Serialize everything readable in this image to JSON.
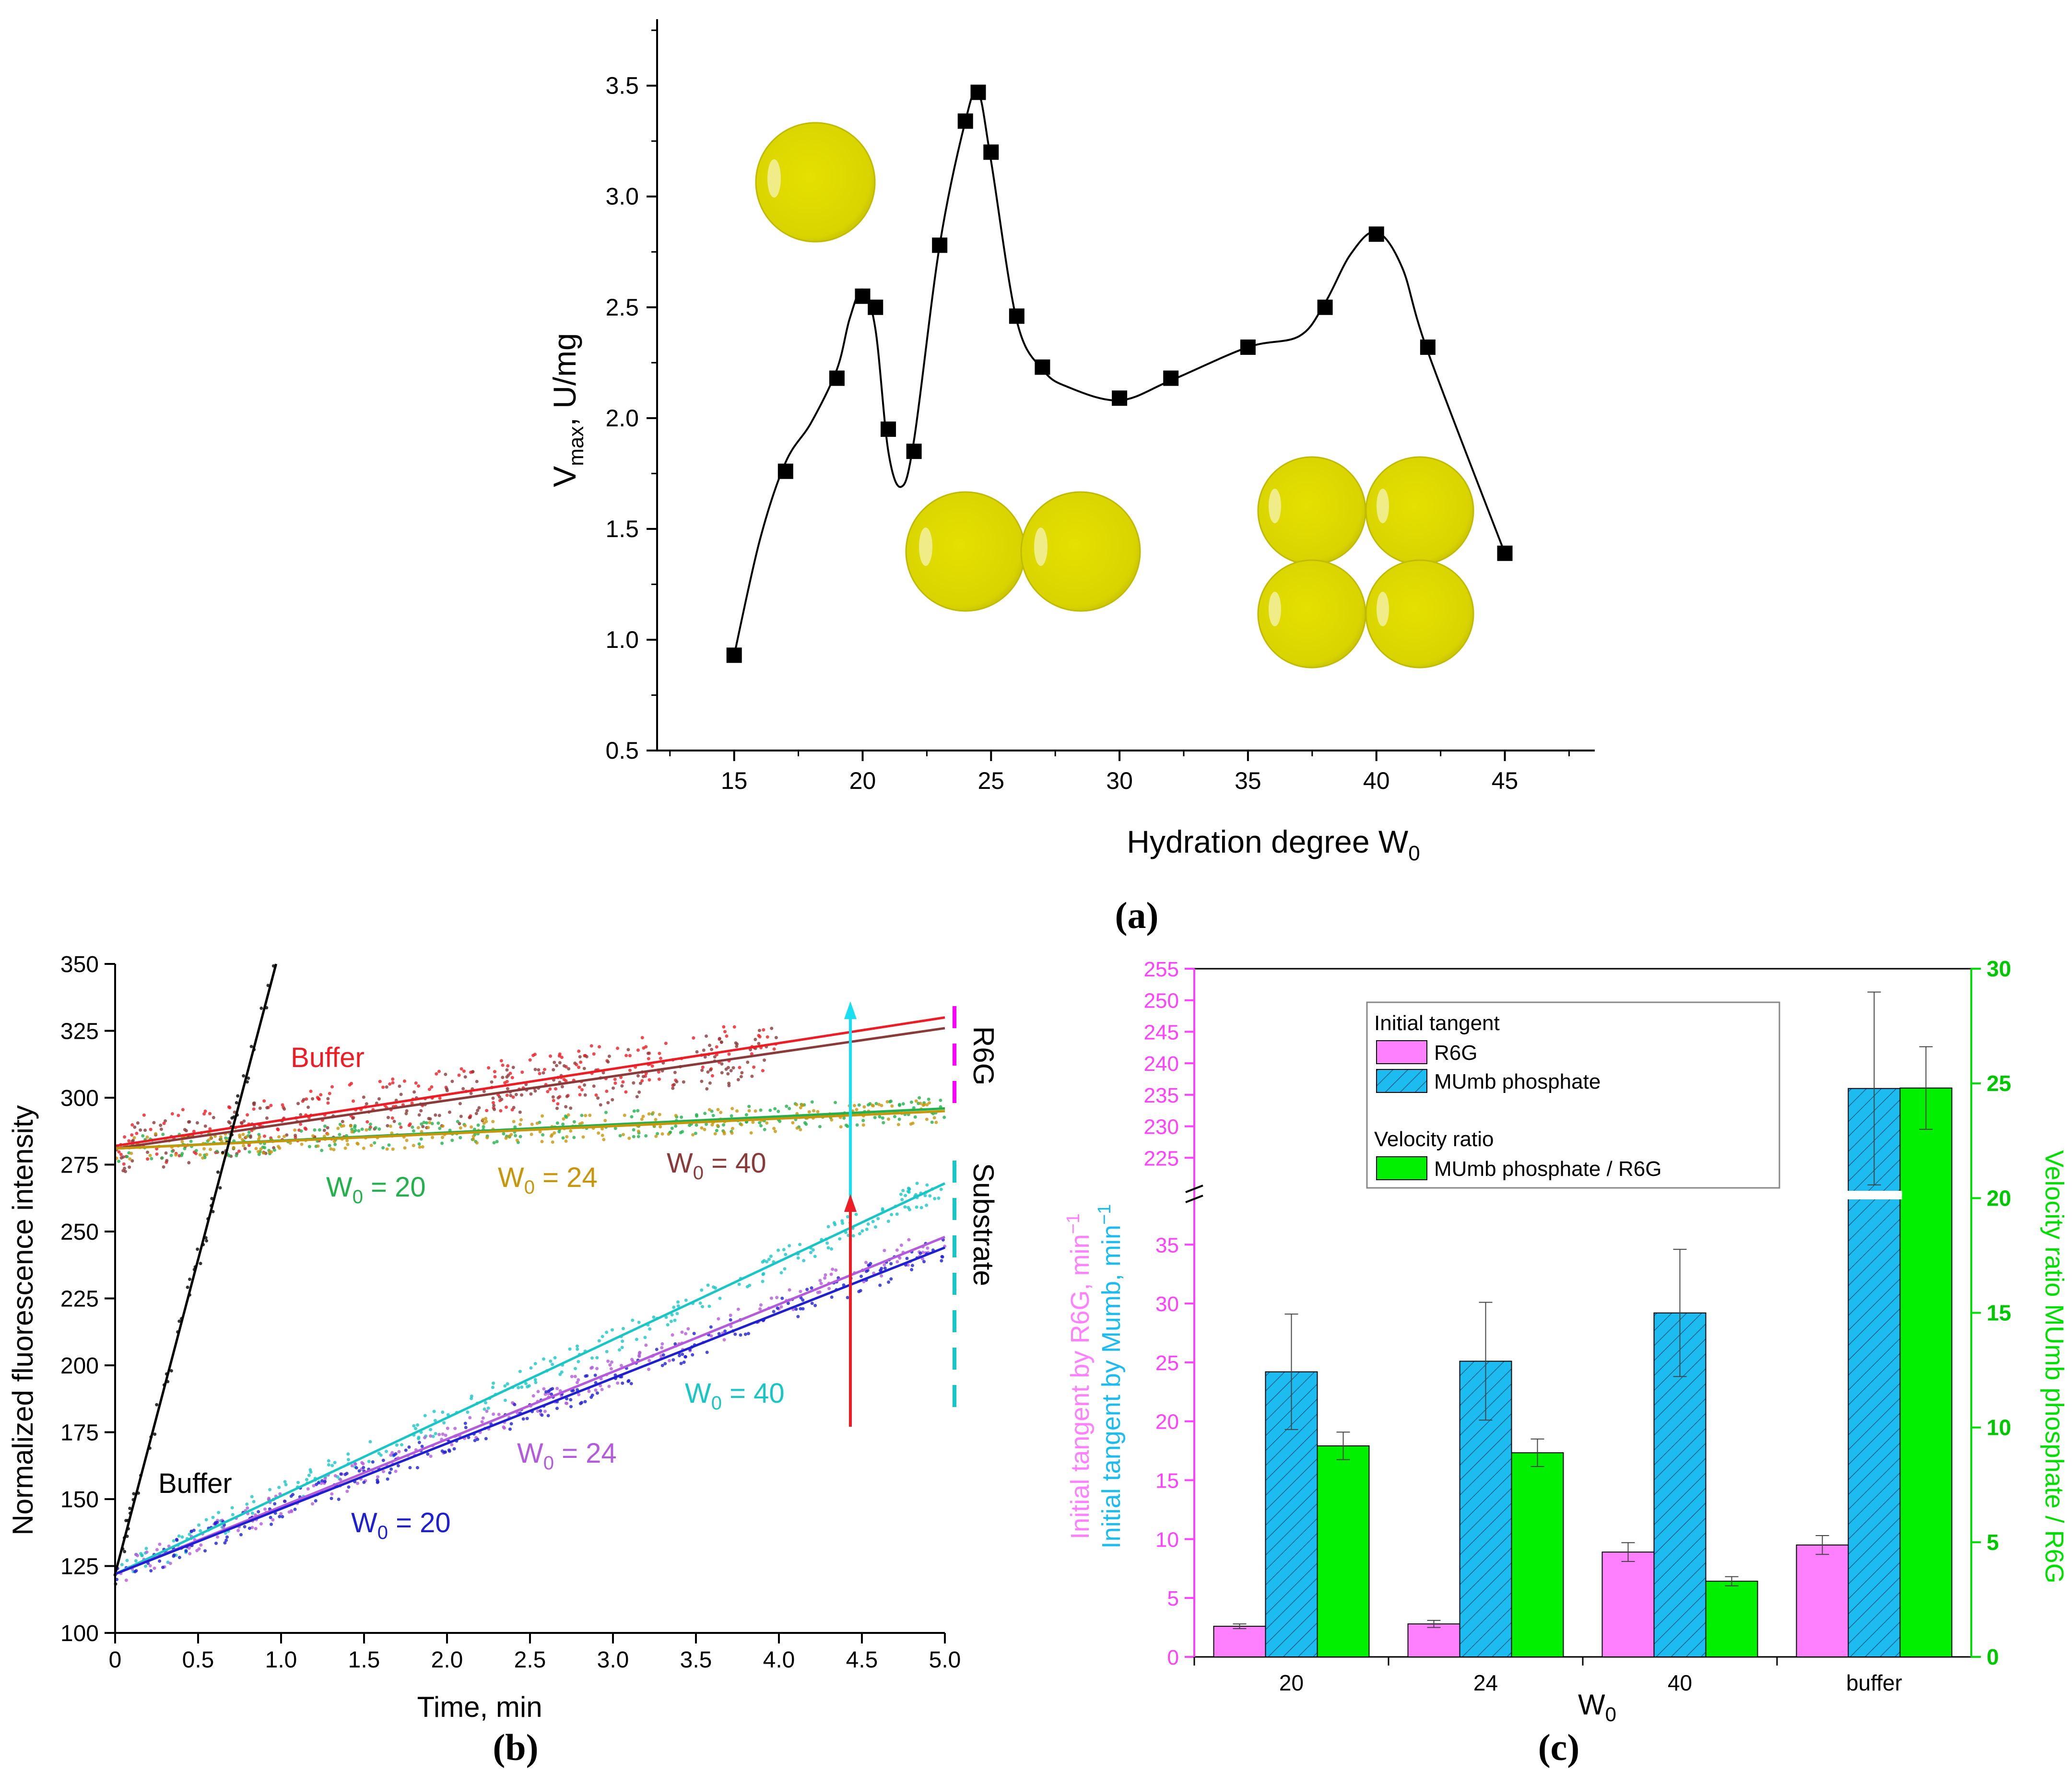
{
  "figure": {
    "panel_a_label": "(a)",
    "panel_b_label": "(b)",
    "panel_c_label": "(c)"
  },
  "colors": {
    "axis": "#000000",
    "sphere_fill": "#d9d400",
    "sphere_edge": "#b8b300",
    "buffer_red": "#ee1c24",
    "brown": "#8b3a3a",
    "green_txt": "#22b14c",
    "orange": "#c8960a",
    "cyan": "#19c6c6",
    "violet": "#b45adc",
    "blue": "#1f1fd2",
    "magenta": "#f0f",
    "pink": "#ff80ff",
    "sky": "#1cbcf0",
    "lime": "#00f000"
  },
  "chart_data": [
    {
      "id": "a",
      "type": "line",
      "title": "",
      "xlabel": "Hydration degree W",
      "xlabel_sub": "0",
      "ylabel_main": "V",
      "ylabel_sub": "max",
      "ylabel_rest": ", U/mg",
      "xlim": [
        12,
        48.5
      ],
      "ylim": [
        0.5,
        3.8
      ],
      "xticks": [
        "15",
        "20",
        "25",
        "30",
        "35",
        "40",
        "45"
      ],
      "yticks": [
        "0.5",
        "1.0",
        "1.5",
        "2.0",
        "2.5",
        "3.0",
        "3.5"
      ],
      "points": {
        "x": [
          15,
          17,
          19,
          20,
          20.5,
          21,
          22,
          23,
          24,
          24.5,
          25,
          26,
          27,
          30,
          32,
          35,
          38,
          40,
          42,
          45
        ],
        "y": [
          0.93,
          1.76,
          2.18,
          2.55,
          2.5,
          1.95,
          1.85,
          2.78,
          3.34,
          3.47,
          3.2,
          2.46,
          2.23,
          2.09,
          2.18,
          2.32,
          2.5,
          2.83,
          2.32,
          1.39
        ]
      },
      "fit_curve": {
        "x": [
          15,
          16,
          17,
          18,
          19,
          19.5,
          20,
          20.5,
          21,
          21.5,
          22,
          23,
          24,
          24.5,
          25,
          26,
          27,
          28,
          30,
          32,
          35,
          37,
          38,
          39,
          40,
          41,
          42,
          45
        ],
        "y": [
          0.93,
          1.45,
          1.8,
          1.98,
          2.22,
          2.45,
          2.58,
          2.4,
          1.85,
          1.69,
          1.9,
          2.78,
          3.34,
          3.47,
          3.16,
          2.44,
          2.22,
          2.14,
          2.08,
          2.17,
          2.32,
          2.37,
          2.52,
          2.74,
          2.84,
          2.68,
          2.3,
          1.39
        ]
      }
    },
    {
      "id": "b",
      "type": "line",
      "xlabel": "Time, min",
      "ylabel": "Normalized fluorescence intensity",
      "xlim": [
        0,
        5
      ],
      "ylim": [
        100,
        350
      ],
      "xticks": [
        "0",
        "0.5",
        "1.0",
        "1.5",
        "2.0",
        "2.5",
        "3.0",
        "3.5",
        "4.0",
        "4.5",
        "5.0"
      ],
      "yticks": [
        "100",
        "125",
        "150",
        "175",
        "200",
        "225",
        "250",
        "275",
        "300",
        "325",
        "350"
      ],
      "series": [
        {
          "name": "Buffer (R6G)",
          "x": [
            0,
            5
          ],
          "y": [
            282,
            330
          ],
          "color_key": "buffer_red"
        },
        {
          "name": "W0 = 40 (R6G)",
          "x": [
            0,
            5
          ],
          "y": [
            281,
            326
          ],
          "color_key": "brown"
        },
        {
          "name": "W0 = 20 (R6G)",
          "x": [
            0,
            5
          ],
          "y": [
            281,
            296
          ],
          "color_key": "green_txt"
        },
        {
          "name": "W0 = 24 (R6G)",
          "x": [
            0,
            5
          ],
          "y": [
            281,
            295
          ],
          "color_key": "orange"
        },
        {
          "name": "Buffer (Substrate)",
          "x": [
            0,
            0.97
          ],
          "y": [
            122,
            350
          ],
          "color_key": "axis"
        },
        {
          "name": "W0 = 40 (Substrate)",
          "x": [
            0,
            5
          ],
          "y": [
            122,
            268
          ],
          "color_key": "cyan"
        },
        {
          "name": "W0 = 24 (Substrate)",
          "x": [
            0,
            5
          ],
          "y": [
            122,
            248
          ],
          "color_key": "violet"
        },
        {
          "name": "W0 = 20 (Substrate)",
          "x": [
            0,
            5
          ],
          "y": [
            122,
            244
          ],
          "color_key": "blue"
        }
      ],
      "annotations": {
        "buffer_top": "Buffer",
        "w20_top": "W",
        "w20_top_rest": " = 20",
        "w24_top": "W",
        "w24_top_rest": " = 24",
        "w40_top": "W",
        "w40_top_rest": " = 40",
        "w40_bottom": "W",
        "w40_bottom_rest": " = 40",
        "w24_bottom": "W",
        "w24_bottom_rest": " = 24",
        "w20_bottom": "W",
        "w20_bottom_rest": " = 20",
        "buffer_bottom": "Buffer",
        "sub0": "0",
        "r6g_label": "R6G",
        "substrate_label": "Substrate"
      }
    },
    {
      "id": "c",
      "type": "bar",
      "categories": [
        "20",
        "24",
        "40",
        "buffer"
      ],
      "xlabel": "W",
      "xlabel_sub": "0",
      "ylabel_left_1": "Initial tangent by R6G, min",
      "ylabel_left_2": "Initial tangent by Mumb, min",
      "ylabel_sup": "−1",
      "ylabel_right": "Velocity ratio MUmb phosphate / R6G",
      "left_lower_range": [
        0,
        39
      ],
      "left_upper_range": [
        220,
        255
      ],
      "left_ticks_lower": [
        "0",
        "5",
        "10",
        "15",
        "20",
        "25",
        "30",
        "35"
      ],
      "left_ticks_upper": [
        "225",
        "230",
        "235",
        "240",
        "245",
        "250",
        "255"
      ],
      "right_range": [
        0,
        30
      ],
      "right_ticks": [
        "0",
        "5",
        "10",
        "15",
        "20",
        "25",
        "30"
      ],
      "series": [
        {
          "name": "R6G",
          "axis": "left",
          "values": [
            2.6,
            2.8,
            8.9,
            9.5
          ],
          "errors": [
            0.2,
            0.3,
            0.8,
            0.8
          ]
        },
        {
          "name": "MUmb phosphate",
          "axis": "left",
          "values": [
            24.2,
            25.1,
            29.2,
            236.0
          ],
          "errors": [
            4.9,
            5.0,
            5.4,
            15.3
          ]
        },
        {
          "name": "MUmb phosphate / R6G",
          "axis": "right",
          "values": [
            9.2,
            8.9,
            3.3,
            24.8
          ],
          "errors": [
            0.6,
            0.6,
            0.2,
            1.8
          ]
        }
      ],
      "legend": {
        "group1_title": "Initial tangent",
        "item1": "R6G",
        "item2": "MUmb phosphate",
        "group2_title": "Velocity ratio",
        "item3": "MUmb phosphate / R6G"
      }
    }
  ]
}
